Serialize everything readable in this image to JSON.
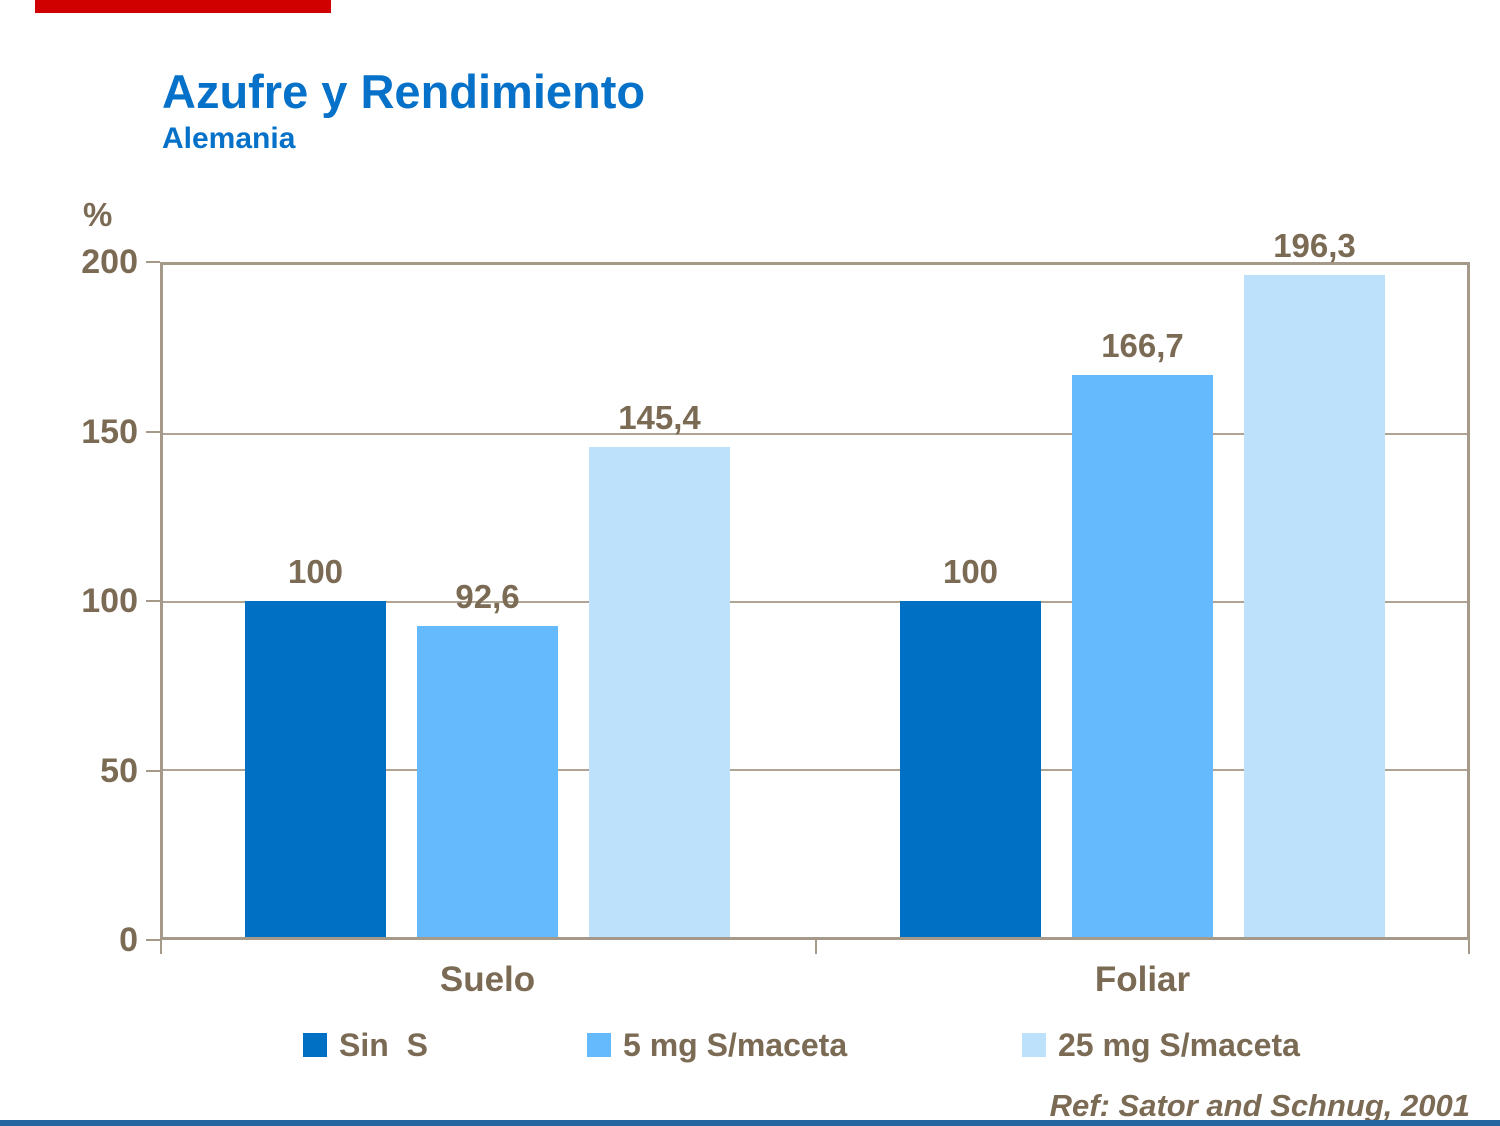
{
  "slide": {
    "title": "Azufre y Rendimiento",
    "subtitle": "Alemania",
    "reference": "Ref: Sator and Schnug, 2001"
  },
  "colors": {
    "title_blue": "#0671C8",
    "text_brown": "#7B6A54",
    "frame_tan": "#A5998A",
    "gridline_tan": "#AFA394",
    "accent_red": "#D00000",
    "bottom_bar_blue": "#2565A0",
    "series1_blue": "#0070C4",
    "series2_blue": "#64BAFC",
    "series3_blue": "#BDE0FB"
  },
  "chart_data": {
    "type": "bar",
    "title": "Azufre y Rendimiento",
    "subtitle": "Alemania",
    "unit_label": "%",
    "categories": [
      "Suelo",
      "Foliar"
    ],
    "series": [
      {
        "name": "Sin  S",
        "values": [
          100,
          100
        ],
        "labels": [
          "100",
          "100"
        ],
        "color": "#0070C4"
      },
      {
        "name": "5 mg S/maceta",
        "values": [
          92.6,
          166.7
        ],
        "labels": [
          "92,6",
          "166,7"
        ],
        "color": "#64BAFC"
      },
      {
        "name": "25 mg S/maceta",
        "values": [
          145.4,
          196.3
        ],
        "labels": [
          "145,4",
          "196,3"
        ],
        "color": "#BDE0FB"
      }
    ],
    "ylim": [
      0,
      200
    ],
    "yticks": [
      "0",
      "50",
      "100",
      "150",
      "200"
    ],
    "grid": true,
    "legend_position": "bottom"
  }
}
